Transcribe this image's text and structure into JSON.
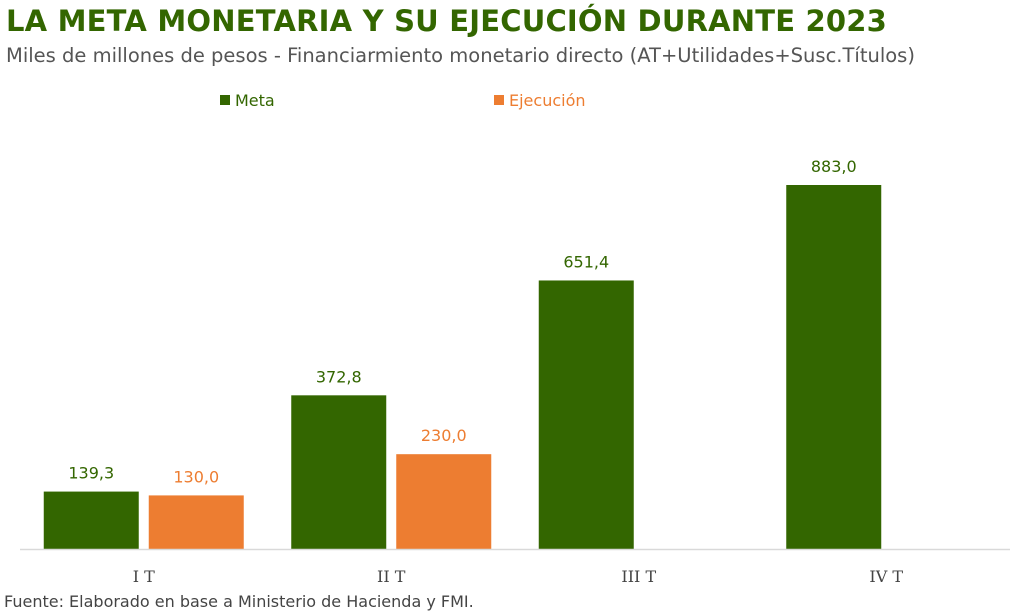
{
  "title": "LA META MONETARIA Y SU EJECUCIÓN DURANTE 2023",
  "subtitle": "Miles de millones de pesos - Financiarmiento monetario directo (AT+Utilidades+Susc.Títulos)",
  "footer": "Fuente: Elaborado en base a Ministerio de Hacienda y FMI.",
  "chart_data": {
    "type": "bar",
    "title": "LA META MONETARIA Y SU EJECUCIÓN DURANTE 2023",
    "categories": [
      "I T",
      "II T",
      "III T",
      "IV T"
    ],
    "series": [
      {
        "name": "Meta",
        "color": "#336600",
        "values": [
          139.3,
          372.8,
          651.4,
          883.0
        ],
        "labels": [
          "139,3",
          "372,8",
          "651,4",
          "883,0"
        ]
      },
      {
        "name": "Ejecución",
        "color": "#ED7D31",
        "values": [
          130.0,
          230.0,
          null,
          null
        ],
        "labels": [
          "130,0",
          "230,0",
          null,
          null
        ]
      }
    ],
    "ylim": [
      0,
      883.0
    ],
    "grid": false,
    "legend": "top",
    "xlabel": "",
    "ylabel": ""
  }
}
